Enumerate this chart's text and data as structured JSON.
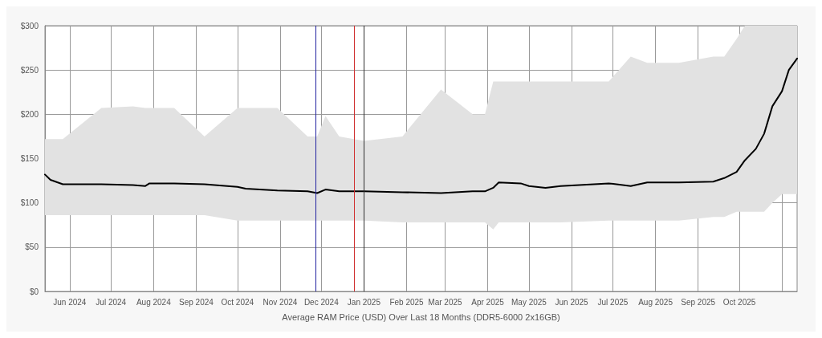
{
  "chart_data": {
    "type": "line",
    "xlabel": "Average RAM Price (USD) Over Last 18 Months (DDR5-6000 2x16GB)",
    "x": [
      "2024-05-14",
      "2024-05-18",
      "2024-05-27",
      "2024-06-24",
      "2024-07-17",
      "2024-07-26",
      "2024-07-29",
      "2024-08-16",
      "2024-09-07",
      "2024-10-01",
      "2024-10-07",
      "2024-10-30",
      "2024-11-21",
      "2024-11-28",
      "2024-12-04",
      "2024-12-14",
      "2025-01-01",
      "2025-01-29",
      "2025-02-26",
      "2025-03-21",
      "2025-03-30",
      "2025-04-05",
      "2025-04-09",
      "2025-04-25",
      "2025-05-01",
      "2025-05-13",
      "2025-05-24",
      "2025-06-28",
      "2025-07-14",
      "2025-07-26",
      "2025-08-18",
      "2025-09-12",
      "2025-09-20",
      "2025-09-29",
      "2025-10-05",
      "2025-10-13",
      "2025-10-19",
      "2025-10-25",
      "2025-11-01",
      "2025-11-06",
      "2025-11-12"
    ],
    "series": [
      {
        "color": "#000000",
        "values": [
          132,
          126,
          121,
          121,
          120,
          119,
          122,
          122,
          121,
          118,
          116,
          114,
          113,
          111,
          115,
          113,
          113,
          112,
          111,
          113,
          113,
          117,
          123,
          122,
          119,
          117,
          119,
          122,
          119,
          123,
          123,
          124,
          128,
          135,
          148,
          161,
          178,
          209,
          226,
          250,
          263
        ],
        "lower": [
          86,
          86,
          86,
          86,
          86,
          86,
          86,
          86,
          86,
          80,
          80,
          80,
          80,
          80,
          80,
          80,
          80,
          78,
          78,
          78,
          78,
          70,
          78,
          78,
          78,
          78,
          78,
          80,
          80,
          80,
          80,
          84,
          84,
          90,
          90,
          90,
          90,
          100,
          110,
          110,
          110
        ],
        "upper": [
          172,
          172,
          172,
          207,
          209,
          207,
          207,
          207,
          175,
          207,
          207,
          207,
          175,
          175,
          198,
          175,
          170,
          175,
          228,
          200,
          200,
          237,
          237,
          237,
          237,
          237,
          237,
          237,
          265,
          258,
          258,
          265,
          265,
          285,
          300,
          300,
          300,
          300,
          300,
          300,
          300
        ]
      }
    ],
    "xlim": [
      "2024-05-14",
      "2025-11-12"
    ],
    "xticks": [
      {
        "value": "2024-06-01",
        "label": "Jun 2024"
      },
      {
        "value": "2024-07-01",
        "label": "Jul 2024"
      },
      {
        "value": "2024-08-01",
        "label": "Aug 2024"
      },
      {
        "value": "2024-09-01",
        "label": "Sep 2024"
      },
      {
        "value": "2024-10-01",
        "label": "Oct 2024"
      },
      {
        "value": "2024-11-01",
        "label": "Nov 2024"
      },
      {
        "value": "2024-12-01",
        "label": "Dec 2024"
      },
      {
        "value": "2025-01-01",
        "label": "Jan 2025"
      },
      {
        "value": "2025-02-01",
        "label": "Feb 2025"
      },
      {
        "value": "2025-03-01",
        "label": "Mar 2025"
      },
      {
        "value": "2025-04-01",
        "label": "Apr 2025"
      },
      {
        "value": "2025-05-01",
        "label": "May 2025"
      },
      {
        "value": "2025-06-01",
        "label": "Jun 2025"
      },
      {
        "value": "2025-07-01",
        "label": "Jul 2025"
      },
      {
        "value": "2025-08-01",
        "label": "Aug 2025"
      },
      {
        "value": "2025-09-01",
        "label": "Sep 2025"
      },
      {
        "value": "2025-10-01",
        "label": "Oct 2025"
      },
      {
        "value": "2025-11-01",
        "label": null
      }
    ],
    "ylim": [
      0,
      300
    ],
    "yticks": [
      {
        "value": 0,
        "label": "$0"
      },
      {
        "value": 50,
        "label": "$50"
      },
      {
        "value": 100,
        "label": "$100"
      },
      {
        "value": 150,
        "label": "$150"
      },
      {
        "value": 200,
        "label": "$200"
      },
      {
        "value": 250,
        "label": "$250"
      },
      {
        "value": 300,
        "label": "$300"
      }
    ],
    "ref_lines": [
      {
        "axis": "x",
        "value": "2024-11-27",
        "color": "#2020a0"
      },
      {
        "axis": "x",
        "value": "2024-12-25",
        "color": "#d03030"
      },
      {
        "axis": "x",
        "value": "2025-01-01",
        "color": "#303030"
      }
    ],
    "grid": true,
    "marker": "none",
    "line_style": "solid"
  }
}
